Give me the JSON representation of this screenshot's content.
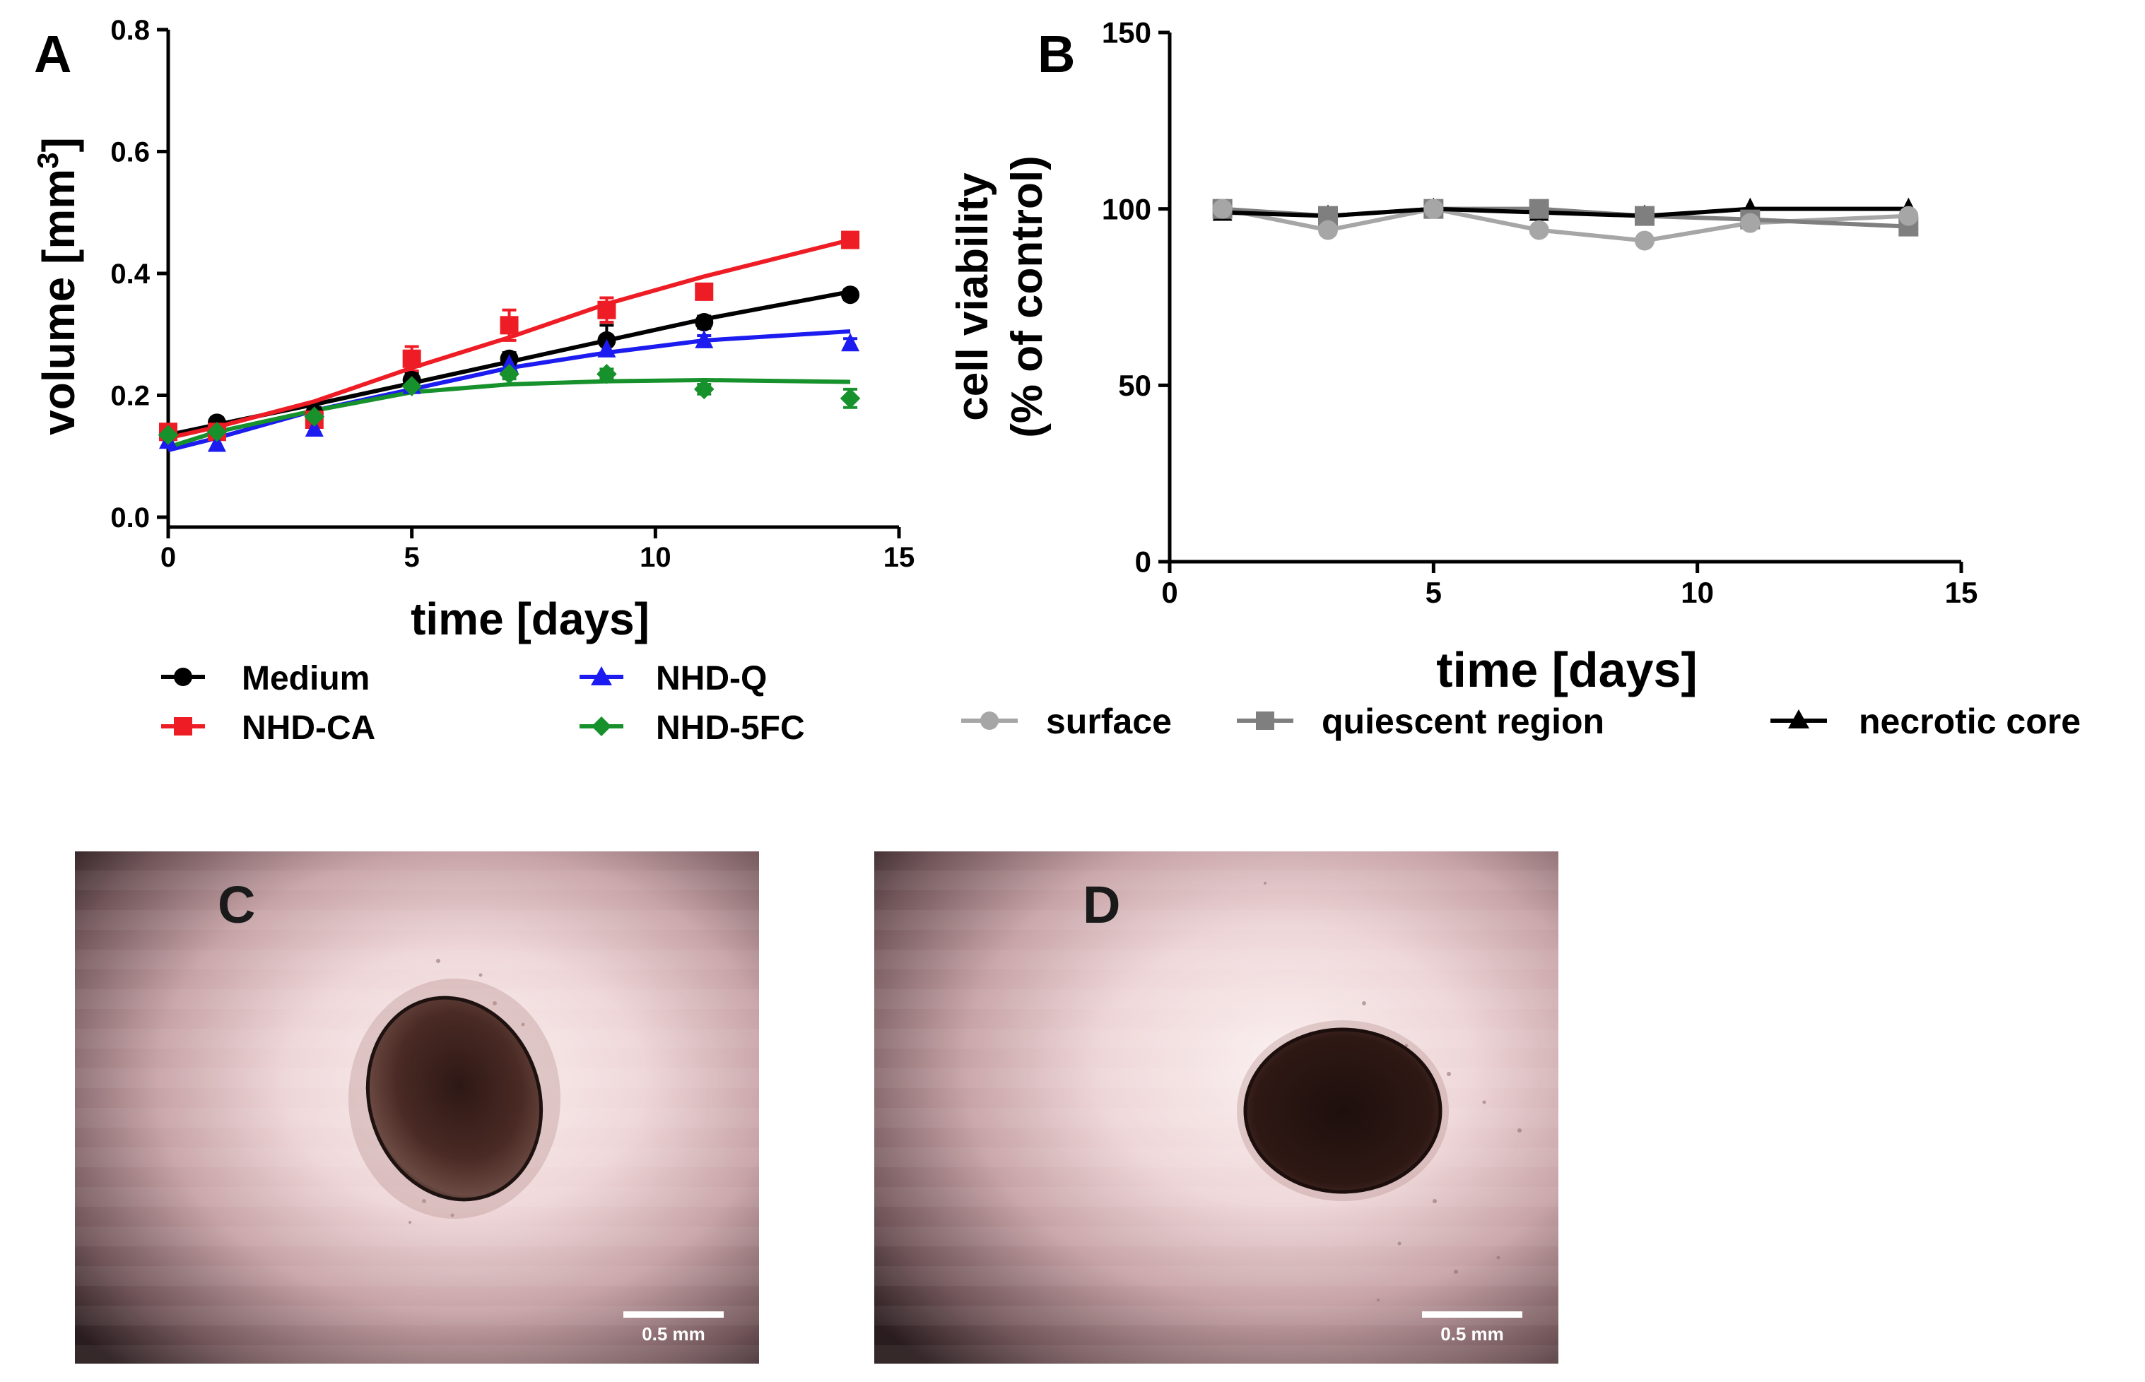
{
  "chart_data": [
    {
      "panel": "A",
      "type": "line",
      "xlabel": "time [days]",
      "ylabel_main": "volume [mm",
      "ylabel_sup": "3",
      "ylabel_end": "]",
      "xlim": [
        0,
        15
      ],
      "ylim": [
        0,
        0.8
      ],
      "xticks": [
        "0",
        "5",
        "10",
        "15"
      ],
      "xtick_values": [
        0,
        5,
        10,
        15
      ],
      "yticks": [
        "0.0",
        "0.2",
        "0.4",
        "0.6",
        "0.8"
      ],
      "ytick_values": [
        0,
        0.2,
        0.4,
        0.6,
        0.8
      ],
      "series": [
        {
          "name": "Medium",
          "color": "#000000",
          "marker": "circle",
          "x": [
            0,
            1,
            3,
            5,
            7,
            9,
            11,
            14
          ],
          "y": [
            0.14,
            0.155,
            0.17,
            0.225,
            0.26,
            0.29,
            0.32,
            0.365
          ],
          "err": [
            0.01,
            0.008,
            0.01,
            0.012,
            0.01,
            0.025,
            0.01,
            0.008
          ],
          "fit": [
            0.135,
            0.152,
            0.185,
            0.22,
            0.255,
            0.29,
            0.325,
            0.37
          ]
        },
        {
          "name": "NHD-CA",
          "color": "#ee1c24",
          "marker": "square",
          "x": [
            0,
            1,
            3,
            5,
            7,
            9,
            11,
            14
          ],
          "y": [
            0.14,
            0.14,
            0.16,
            0.26,
            0.315,
            0.34,
            0.37,
            0.455
          ],
          "err": [
            0.01,
            0.008,
            0.012,
            0.02,
            0.025,
            0.02,
            0.01,
            0.008
          ],
          "fit": [
            0.13,
            0.148,
            0.19,
            0.245,
            0.295,
            0.35,
            0.395,
            0.455
          ]
        },
        {
          "name": "NHD-Q",
          "color": "#1c1cf0",
          "marker": "triangle",
          "x": [
            0,
            1,
            3,
            5,
            7,
            9,
            11,
            14
          ],
          "y": [
            0.125,
            0.12,
            0.145,
            0.215,
            0.25,
            0.275,
            0.29,
            0.285
          ],
          "err": [
            0.008,
            0.008,
            0.01,
            0.008,
            0.008,
            0.01,
            0.008,
            0.008
          ],
          "fit": [
            0.11,
            0.13,
            0.175,
            0.21,
            0.245,
            0.27,
            0.29,
            0.305
          ]
        },
        {
          "name": "NHD-5FC",
          "color": "#16912b",
          "marker": "diamond",
          "x": [
            0,
            1,
            3,
            5,
            7,
            9,
            11,
            14
          ],
          "y": [
            0.135,
            0.14,
            0.165,
            0.215,
            0.235,
            0.235,
            0.21,
            0.195
          ],
          "err": [
            0.008,
            0.008,
            0.008,
            0.008,
            0.008,
            0.008,
            0.008,
            0.015
          ],
          "fit": [
            0.115,
            0.14,
            0.175,
            0.205,
            0.218,
            0.223,
            0.225,
            0.222
          ]
        }
      ],
      "legend_position": "below"
    },
    {
      "panel": "B",
      "type": "line",
      "xlabel": "time [days]",
      "ylabel_line1": "cell viability",
      "ylabel_line2": "(% of control)",
      "xlim": [
        0,
        15
      ],
      "ylim": [
        0,
        150
      ],
      "xticks": [
        "0",
        "5",
        "10",
        "15"
      ],
      "xtick_values": [
        0,
        5,
        10,
        15
      ],
      "yticks": [
        "0",
        "50",
        "100",
        "150"
      ],
      "ytick_values": [
        0,
        50,
        100,
        150
      ],
      "series": [
        {
          "name": "surface",
          "color": "#a6a6a6",
          "marker": "circle",
          "x": [
            1,
            3,
            5,
            7,
            9,
            11,
            14
          ],
          "y": [
            100,
            94,
            100,
            94,
            91,
            96,
            98
          ]
        },
        {
          "name": "quiescent region",
          "color": "#7f7f7f",
          "marker": "square",
          "x": [
            1,
            3,
            5,
            7,
            9,
            11,
            14
          ],
          "y": [
            100,
            98,
            100,
            100,
            98,
            97,
            95
          ]
        },
        {
          "name": "necrotic core",
          "color": "#000000",
          "marker": "triangle",
          "x": [
            1,
            3,
            5,
            7,
            9,
            11,
            14
          ],
          "y": [
            99,
            98,
            100,
            99,
            98,
            100,
            100
          ]
        }
      ],
      "legend_position": "below"
    }
  ],
  "micrographs": [
    {
      "panel": "C",
      "scale_bar_label": "0.5 mm"
    },
    {
      "panel": "D",
      "scale_bar_label": "0.5 mm"
    }
  ]
}
